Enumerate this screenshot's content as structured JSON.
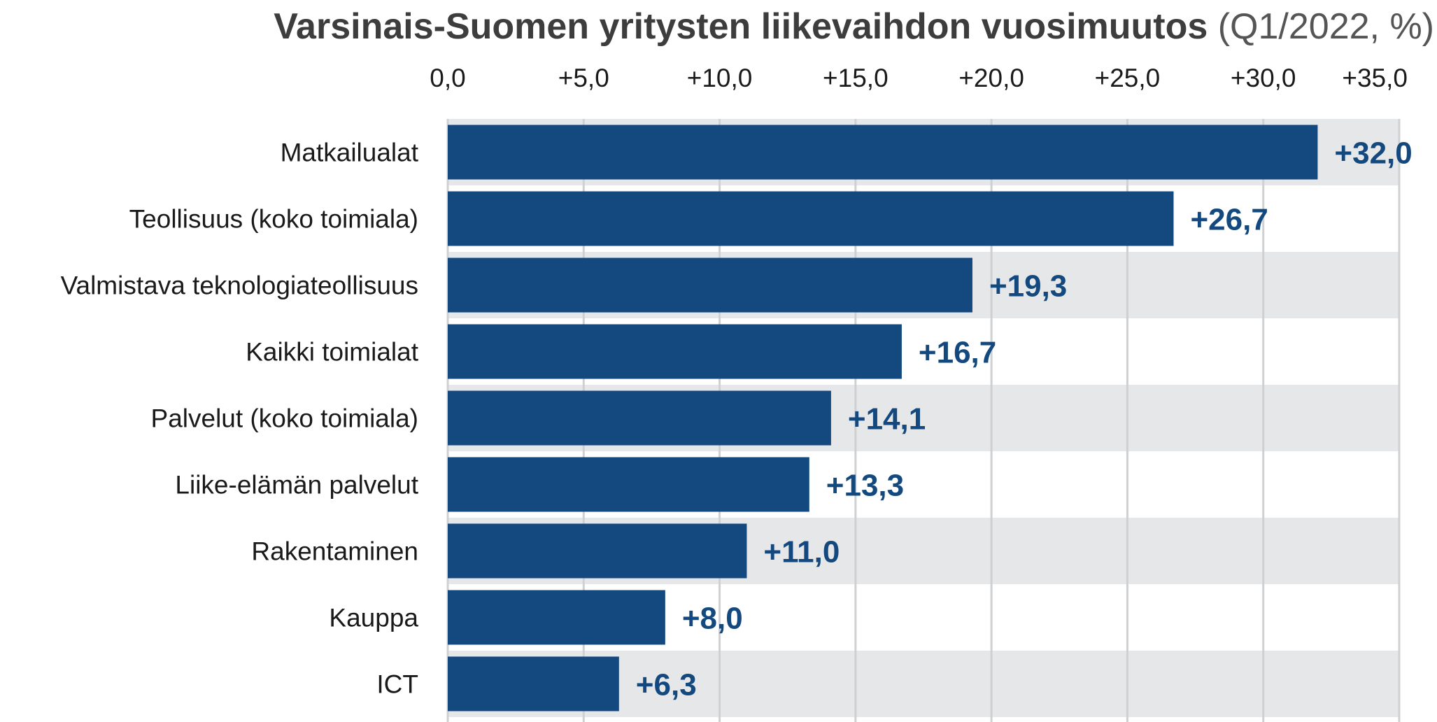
{
  "chart_data": {
    "type": "bar",
    "orientation": "horizontal",
    "title": "Varsinais-Suomen yritysten liikevaihdon vuosimuutos",
    "subtitle": "(Q1/2022, %)",
    "categories": [
      "Matkailualat",
      "Teollisuus (koko toimiala)",
      "Valmistava teknologiateollisuus",
      "Kaikki toimialat",
      "Palvelut (koko toimiala)",
      "Liike-elämän palvelut",
      "Rakentaminen",
      "Kauppa",
      "ICT"
    ],
    "values": [
      32.0,
      26.7,
      19.3,
      16.7,
      14.1,
      13.3,
      11.0,
      8.0,
      6.3
    ],
    "value_labels": [
      "+32,0",
      "+26,7",
      "+19,3",
      "+16,7",
      "+14,1",
      "+13,3",
      "+11,0",
      "+8,0",
      "+6,3"
    ],
    "xlim": [
      0,
      35
    ],
    "x_ticks": [
      0,
      5,
      10,
      15,
      20,
      25,
      30,
      35
    ],
    "x_tick_labels": [
      "0,0",
      "+5,0",
      "+10,0",
      "+15,0",
      "+20,0",
      "+25,0",
      "+30,0",
      "+35,0"
    ],
    "x_axis_position": "top",
    "grid": true,
    "legend": "none",
    "colors": {
      "bar": "#13497e",
      "value_label": "#13497e",
      "band": "#e6e7e9",
      "grid": "#cfd0d2"
    }
  }
}
